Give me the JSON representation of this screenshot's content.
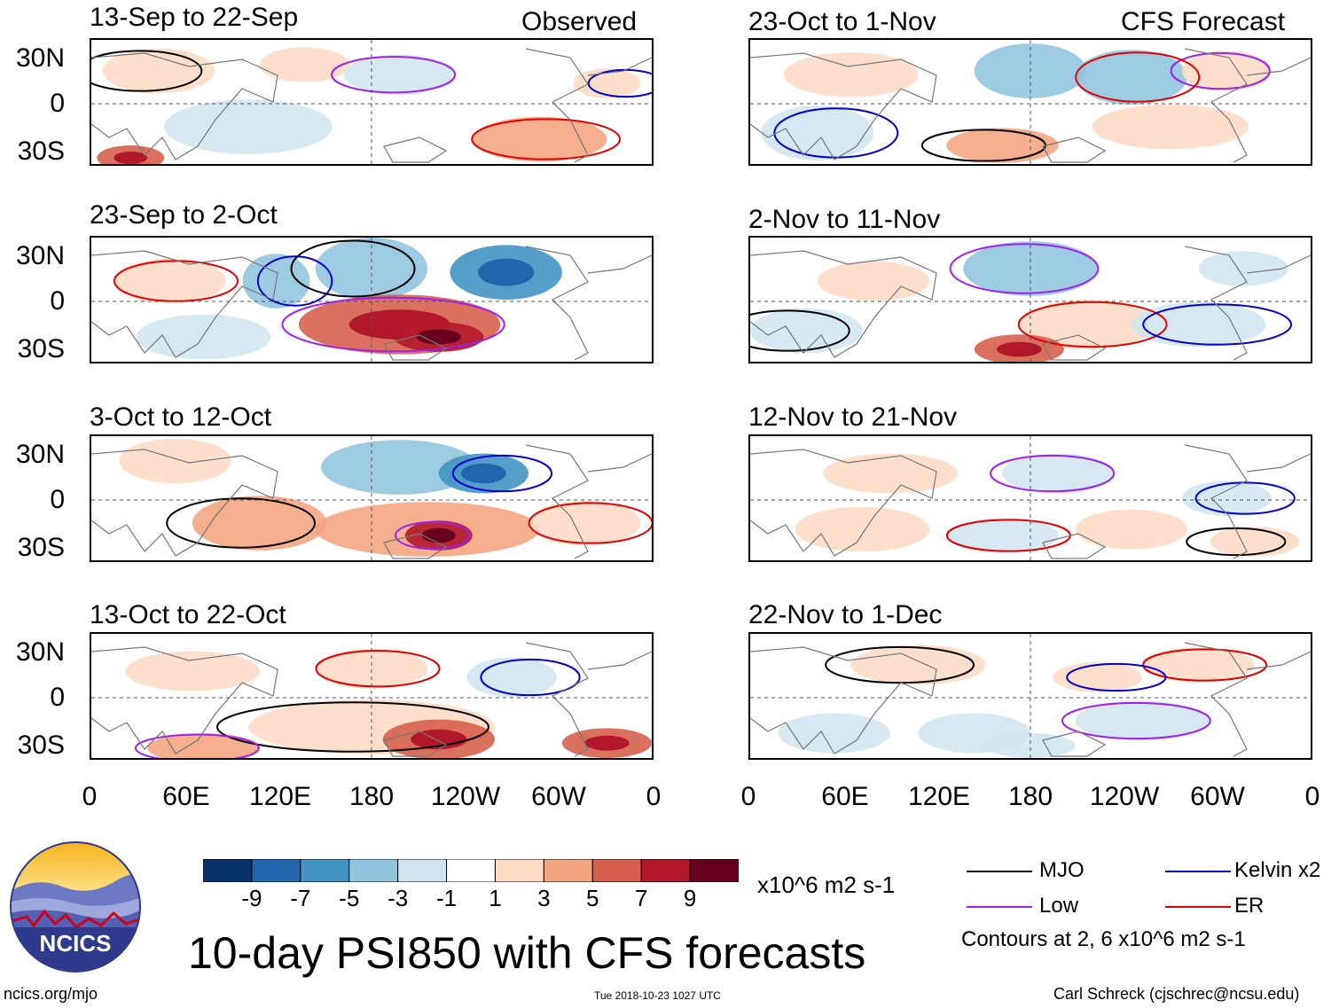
{
  "chart_data": {
    "type": "heatmap",
    "title": "10-day PSI850 with CFS forecasts",
    "units": "x10^6 m2 s-1",
    "x_tick_labels": [
      "0",
      "60E",
      "120E",
      "180",
      "120W",
      "60W",
      "0"
    ],
    "y_tick_labels": [
      "30N",
      "0",
      "30S"
    ],
    "xlim": [
      0,
      360
    ],
    "ylim": [
      -40,
      40
    ],
    "columns": {
      "left": "Observed",
      "right": "CFS Forecast"
    },
    "panels": [
      {
        "period": "13-Sep to 22-Sep",
        "column": "left",
        "row": 1
      },
      {
        "period": "23-Sep to 2-Oct",
        "column": "left",
        "row": 2
      },
      {
        "period": "3-Oct to 12-Oct",
        "column": "left",
        "row": 3
      },
      {
        "period": "13-Oct to 22-Oct",
        "column": "left",
        "row": 4
      },
      {
        "period": "23-Oct to 1-Nov",
        "column": "right",
        "row": 1
      },
      {
        "period": "2-Nov to 11-Nov",
        "column": "right",
        "row": 2
      },
      {
        "period": "12-Nov to 21-Nov",
        "column": "right",
        "row": 3
      },
      {
        "period": "22-Nov to 1-Dec",
        "column": "right",
        "row": 4
      }
    ],
    "colorbar": {
      "labels": [
        "-9",
        "-7",
        "-5",
        "-3",
        "-1",
        "1",
        "3",
        "5",
        "7",
        "9"
      ],
      "colors": [
        "#08306b",
        "#2166ac",
        "#4393c3",
        "#92c5de",
        "#d1e5f0",
        "#ffffff",
        "#fddbc7",
        "#f4a582",
        "#d6604d",
        "#b2182b",
        "#67001f"
      ]
    },
    "legend": [
      {
        "name": "MJO",
        "color": "#000000"
      },
      {
        "name": "Kelvin x2",
        "color": "#0000cc"
      },
      {
        "name": "Low",
        "color": "#a020f0"
      },
      {
        "name": "ER",
        "color": "#e00000"
      }
    ],
    "contour_note": "Contours at 2, 6 x10^6 m2 s-1"
  },
  "footer": {
    "logo_text": "NCICS",
    "url": "ncics.org/mjo",
    "timestamp": "Tue 2018-10-23 1027 UTC",
    "author": "Carl Schreck (cjschrec@ncsu.edu)"
  }
}
